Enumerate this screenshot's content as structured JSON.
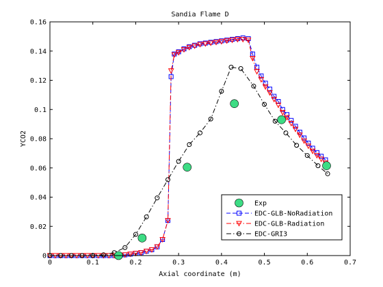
{
  "chart_data": {
    "type": "line",
    "title": "Sandia Flame D",
    "xlabel": "Axial coordinate (m)",
    "ylabel": "YCO2",
    "xlim": [
      0,
      0.7
    ],
    "ylim": [
      0,
      0.16
    ],
    "xticks": [
      0,
      0.1,
      0.2,
      0.3,
      0.4,
      0.5,
      0.6,
      0.7
    ],
    "xtick_labels": [
      "0",
      "0.1",
      "0.2",
      "0.3",
      "0.4",
      "0.5",
      "0.6",
      "0.7"
    ],
    "yticks": [
      0,
      0.02,
      0.04,
      0.06,
      0.08,
      0.1,
      0.12,
      0.14,
      0.16
    ],
    "ytick_labels": [
      "0",
      "0.02",
      "0.04",
      "0.06",
      "0.08",
      "0.1",
      "0.12",
      "0.14",
      "0.16"
    ],
    "grid": false,
    "legend_position": "bottom-right",
    "series": [
      {
        "name": "Exp",
        "color": "#3ddc84",
        "marker": "big-circle",
        "line": "none",
        "x": [
          0.16,
          0.215,
          0.32,
          0.43,
          0.54,
          0.645
        ],
        "y": [
          0.0,
          0.012,
          0.0605,
          0.104,
          0.093,
          0.0615
        ]
      },
      {
        "name": "EDC-GLB-NoRadiation",
        "color": "#0000ff",
        "marker": "square",
        "line": "dashed",
        "x": [
          0.0,
          0.0125,
          0.025,
          0.0375,
          0.05,
          0.0625,
          0.075,
          0.0875,
          0.1,
          0.1125,
          0.125,
          0.1375,
          0.15,
          0.1625,
          0.175,
          0.1875,
          0.2,
          0.2125,
          0.225,
          0.2375,
          0.25,
          0.2625,
          0.275,
          0.2825,
          0.29,
          0.3,
          0.3125,
          0.325,
          0.3375,
          0.35,
          0.3625,
          0.375,
          0.3875,
          0.4,
          0.4125,
          0.425,
          0.4375,
          0.45,
          0.4625,
          0.4725,
          0.4825,
          0.4925,
          0.5025,
          0.5125,
          0.5225,
          0.5325,
          0.5425,
          0.5525,
          0.5625,
          0.5725,
          0.5825,
          0.5925,
          0.6025,
          0.6125,
          0.6225,
          0.6325,
          0.6425
        ],
        "y": [
          0.0,
          0.0,
          0.0,
          0.0,
          0.0,
          0.0,
          0.0,
          0.0,
          0.0,
          0.0,
          0.0,
          0.0,
          0.0,
          0.0,
          0.0005,
          0.001,
          0.0015,
          0.002,
          0.003,
          0.004,
          0.006,
          0.011,
          0.024,
          0.1225,
          0.138,
          0.1395,
          0.1415,
          0.143,
          0.144,
          0.145,
          0.1455,
          0.146,
          0.1465,
          0.147,
          0.1475,
          0.148,
          0.1485,
          0.149,
          0.1485,
          0.138,
          0.129,
          0.123,
          0.118,
          0.114,
          0.109,
          0.1055,
          0.1,
          0.0965,
          0.0925,
          0.0885,
          0.0845,
          0.0805,
          0.077,
          0.0735,
          0.0705,
          0.068,
          0.0655
        ]
      },
      {
        "name": "EDC-GLB-Radiation",
        "color": "#ff0000",
        "marker": "triangle-down",
        "line": "dashdot",
        "x": [
          0.0,
          0.0125,
          0.025,
          0.0375,
          0.05,
          0.0625,
          0.075,
          0.0875,
          0.1,
          0.1125,
          0.125,
          0.1375,
          0.15,
          0.1625,
          0.175,
          0.1875,
          0.2,
          0.2125,
          0.225,
          0.2375,
          0.25,
          0.2625,
          0.275,
          0.2825,
          0.29,
          0.3,
          0.3125,
          0.325,
          0.3375,
          0.35,
          0.3625,
          0.375,
          0.3875,
          0.4,
          0.4125,
          0.425,
          0.4375,
          0.45,
          0.4625,
          0.4725,
          0.4825,
          0.4925,
          0.5025,
          0.5125,
          0.5225,
          0.5325,
          0.5425,
          0.5525,
          0.5625,
          0.5725,
          0.5825,
          0.5925,
          0.6025,
          0.6125,
          0.6225,
          0.6325,
          0.6425
        ],
        "y": [
          0.0,
          0.0,
          0.0,
          0.0,
          0.0,
          0.0,
          0.0,
          0.0,
          0.0,
          0.0,
          0.0,
          0.0,
          0.0,
          0.0,
          0.0005,
          0.001,
          0.0015,
          0.002,
          0.003,
          0.004,
          0.006,
          0.011,
          0.024,
          0.1265,
          0.1375,
          0.139,
          0.141,
          0.1425,
          0.1435,
          0.1445,
          0.145,
          0.1455,
          0.146,
          0.1465,
          0.147,
          0.1475,
          0.148,
          0.148,
          0.1475,
          0.135,
          0.126,
          0.1205,
          0.1155,
          0.1115,
          0.107,
          0.103,
          0.098,
          0.0945,
          0.0905,
          0.0865,
          0.0825,
          0.0785,
          0.075,
          0.0715,
          0.0685,
          0.066,
          0.0635
        ]
      },
      {
        "name": "EDC-GRI3",
        "color": "#000000",
        "marker": "circle",
        "line": "dashdot",
        "x": [
          0.0,
          0.025,
          0.05,
          0.075,
          0.1,
          0.125,
          0.15,
          0.175,
          0.2,
          0.225,
          0.25,
          0.275,
          0.3,
          0.325,
          0.35,
          0.375,
          0.4,
          0.4225,
          0.445,
          0.475,
          0.5,
          0.525,
          0.55,
          0.575,
          0.6,
          0.625,
          0.6475
        ],
        "y": [
          0.0,
          0.0,
          0.0,
          0.0,
          0.0,
          0.0005,
          0.002,
          0.0055,
          0.0145,
          0.0265,
          0.0395,
          0.052,
          0.0645,
          0.076,
          0.084,
          0.0935,
          0.1125,
          0.129,
          0.128,
          0.116,
          0.1035,
          0.092,
          0.084,
          0.0755,
          0.0685,
          0.0615,
          0.056
        ]
      }
    ]
  }
}
